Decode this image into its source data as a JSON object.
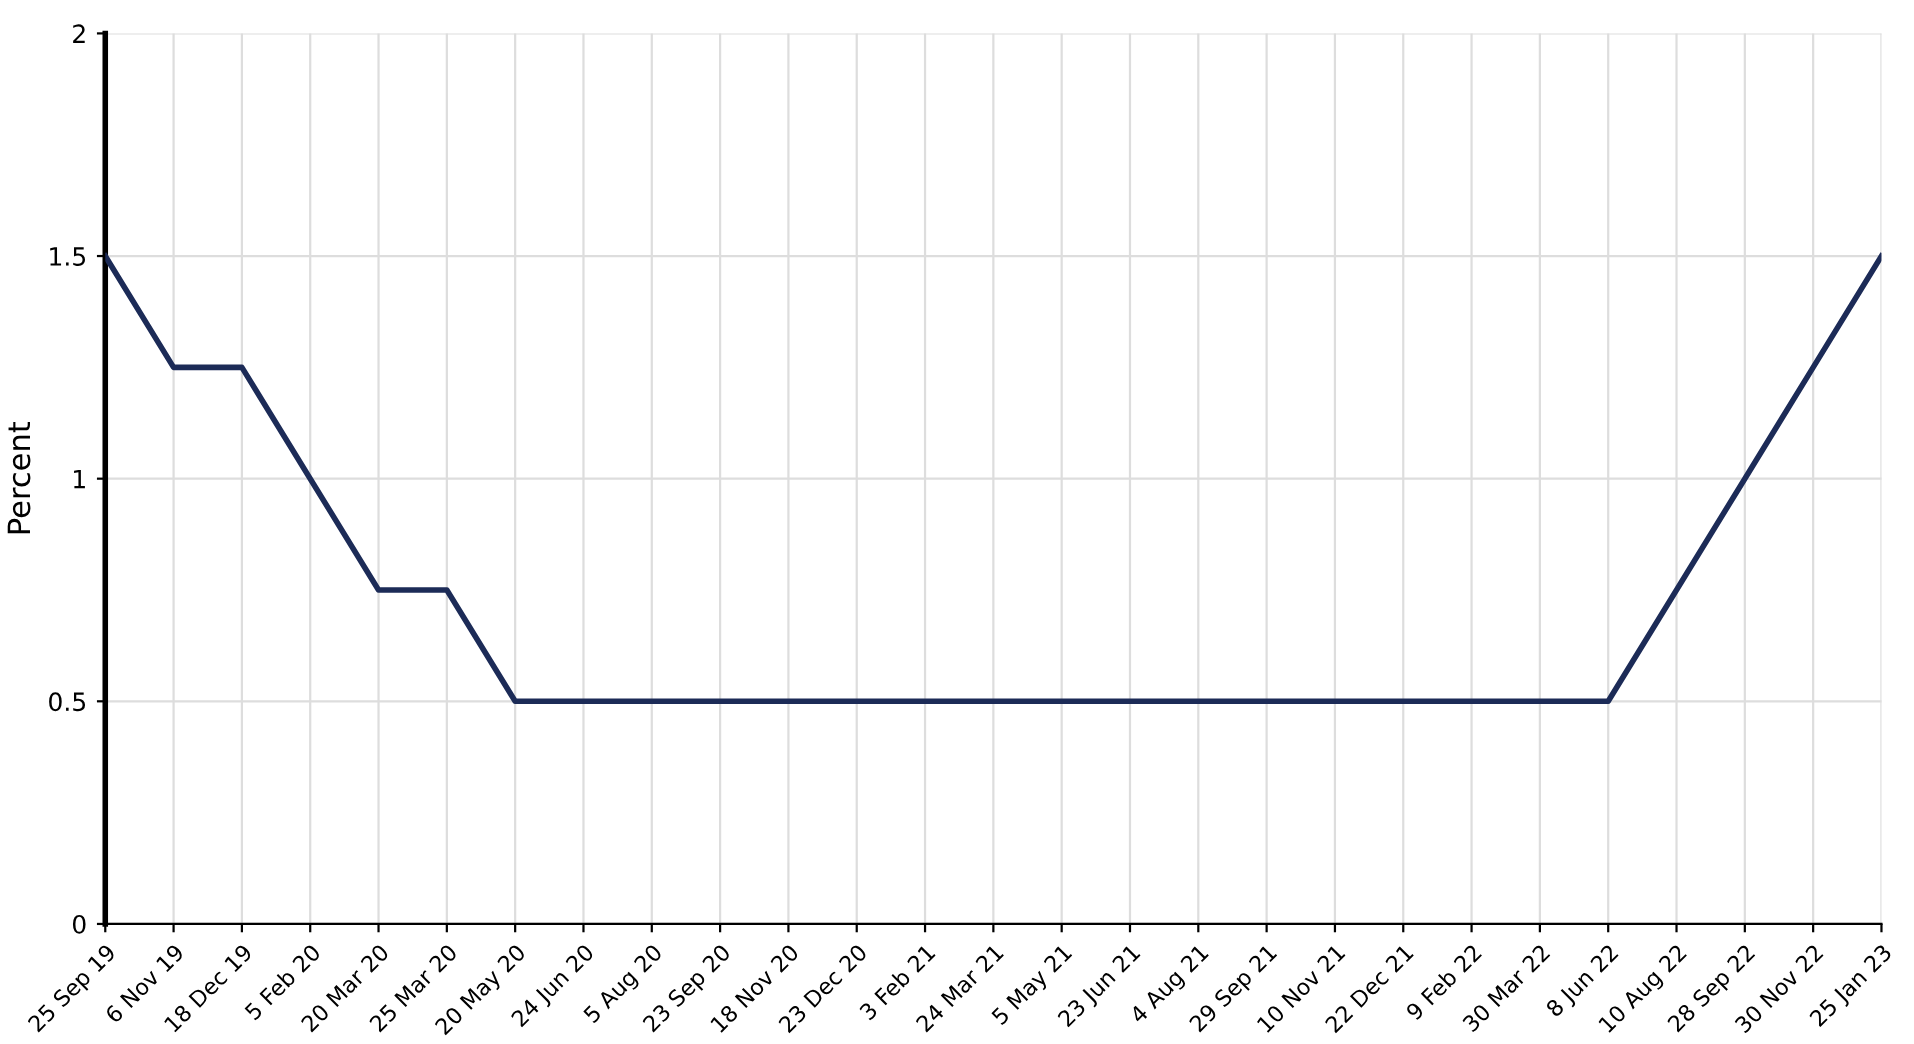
{
  "chart_data": {
    "type": "line",
    "ylabel": "Percent",
    "categories": [
      "25 Sep 19",
      "6 Nov 19",
      "18 Dec 19",
      "5 Feb 20",
      "20 Mar 20",
      "25 Mar 20",
      "20 May 20",
      "24 Jun 20",
      "5 Aug 20",
      "23 Sep 20",
      "18 Nov 20",
      "23 Dec 20",
      "3 Feb 21",
      "24 Mar 21",
      "5 May 21",
      "23 Jun 21",
      "4 Aug 21",
      "29 Sep 21",
      "10 Nov 21",
      "22 Dec 21",
      "9 Feb 22",
      "30 Mar 22",
      "8 Jun 22",
      "10 Aug 22",
      "28 Sep 22",
      "30 Nov 22",
      "25 Jan 23"
    ],
    "series": [
      {
        "color": "#1c2b57",
        "values": [
          1.5,
          1.25,
          1.25,
          1.0,
          0.75,
          0.75,
          0.5,
          0.5,
          0.5,
          0.5,
          0.5,
          0.5,
          0.5,
          0.5,
          0.5,
          0.5,
          0.5,
          0.5,
          0.5,
          0.5,
          0.5,
          0.5,
          0.5,
          0.75,
          1.0,
          1.25,
          1.5
        ]
      }
    ],
    "ylim": [
      0,
      2
    ],
    "yticks": [
      0,
      0.5,
      1,
      1.5,
      2
    ],
    "grid": true,
    "line_style": "solid",
    "marker": "none"
  }
}
